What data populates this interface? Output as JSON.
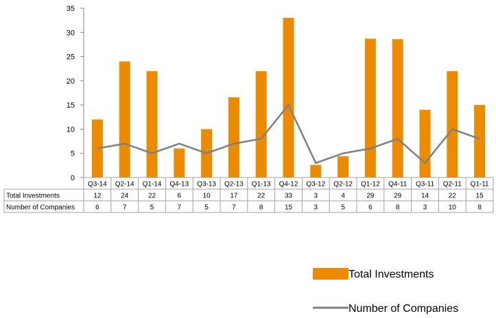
{
  "chart_data": {
    "type": "bar",
    "categories": [
      "Q3-14",
      "Q2-14",
      "Q1-14",
      "Q4-13",
      "Q3-13",
      "Q2-13",
      "Q1-13",
      "Q4-12",
      "Q3-12",
      "Q2-12",
      "Q1-12",
      "Q4-11",
      "Q3-11",
      "Q2-11",
      "Q1-11"
    ],
    "series": [
      {
        "name": "Total Investments",
        "type": "bar",
        "color": "#ED8B00",
        "values": [
          12,
          24,
          22,
          6,
          10,
          16.6,
          22,
          33,
          2.6,
          4.4,
          28.7,
          28.6,
          14,
          22,
          15
        ],
        "table_labels": [
          "12",
          "24",
          "22",
          "6",
          "10",
          "17",
          "22",
          "33",
          "3",
          "4",
          "29",
          "29",
          "14",
          "22",
          "15"
        ]
      },
      {
        "name": "Number of Companies",
        "type": "line",
        "color": "#7F7F7F",
        "values": [
          6,
          7,
          5,
          7,
          5,
          7,
          8,
          15,
          3,
          5,
          6,
          8,
          3,
          10,
          8
        ],
        "table_labels": [
          "6",
          "7",
          "5",
          "7",
          "5",
          "7",
          "8",
          "15",
          "3",
          "5",
          "6",
          "8",
          "3",
          "10",
          "8"
        ]
      }
    ],
    "ylim": [
      0,
      35
    ],
    "yticks": [
      "0",
      "5",
      "10",
      "15",
      "20",
      "25",
      "30",
      "35"
    ],
    "grid": false,
    "legend_position": "bottom-right",
    "data_table": true
  }
}
